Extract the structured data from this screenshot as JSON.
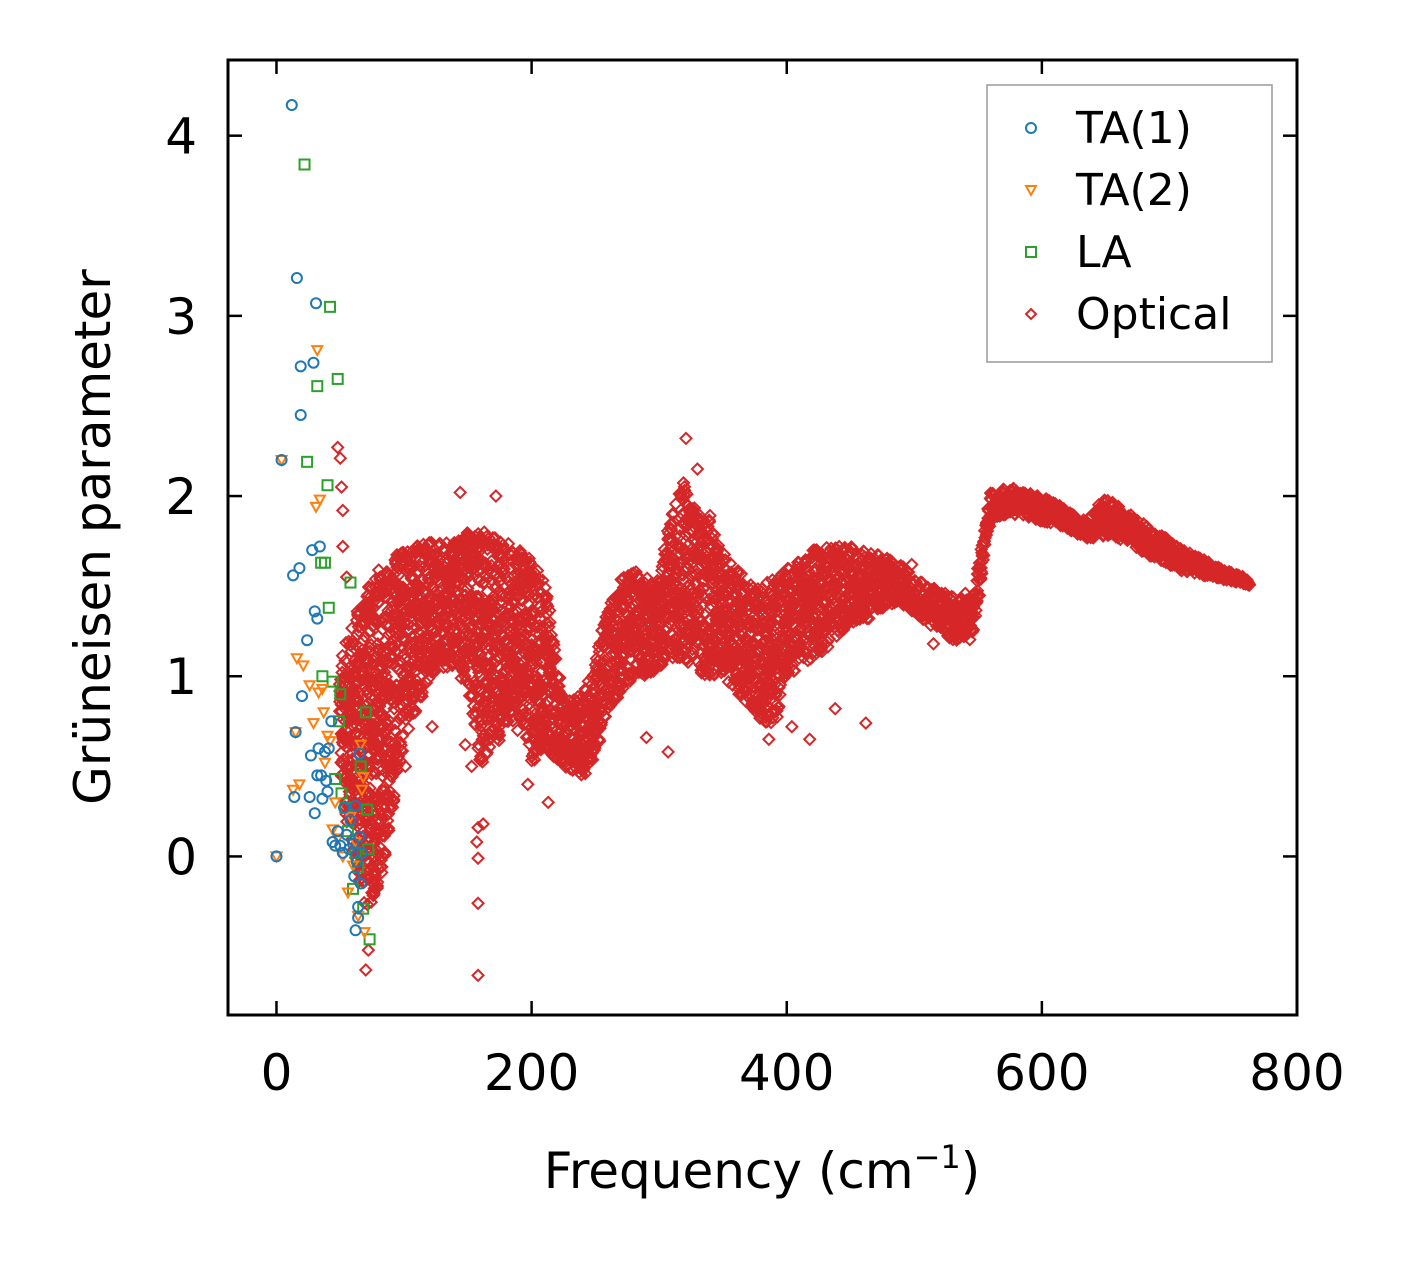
{
  "chart_data": {
    "type": "scatter",
    "title": "",
    "xlabel": "Frequency (cm",
    "xlabel_sup": "−1",
    "xlabel_close": ")",
    "ylabel": "Grüneisen parameter",
    "xlim": [
      -38,
      800
    ],
    "ylim": [
      -0.88,
      4.42
    ],
    "xticks": [
      0,
      200,
      400,
      600,
      800
    ],
    "xtick_labels": [
      "0",
      "200",
      "400",
      "600",
      "800"
    ],
    "yticks": [
      0,
      1,
      2,
      3,
      4
    ],
    "ytick_labels": [
      "0",
      "1",
      "2",
      "3",
      "4"
    ],
    "grid": false,
    "legend_position": "top-right",
    "series": [
      {
        "name": "TA(1)",
        "marker": "circle",
        "color": "#1f77b4",
        "points": [
          [
            0,
            0
          ],
          [
            4,
            2.2
          ],
          [
            12,
            4.17
          ],
          [
            13,
            1.56
          ],
          [
            14,
            0.33
          ],
          [
            15,
            0.69
          ],
          [
            16,
            3.21
          ],
          [
            18,
            1.6
          ],
          [
            19,
            2.72
          ],
          [
            19,
            2.45
          ],
          [
            20,
            0.89
          ],
          [
            24,
            1.2
          ],
          [
            26,
            0.33
          ],
          [
            27,
            0.56
          ],
          [
            28,
            1.7
          ],
          [
            29,
            2.74
          ],
          [
            30,
            0.24
          ],
          [
            30,
            1.36
          ],
          [
            31,
            3.07
          ],
          [
            32,
            1.32
          ],
          [
            32,
            0.45
          ],
          [
            33,
            0.6
          ],
          [
            34,
            1.72
          ],
          [
            35,
            0.45
          ],
          [
            36,
            0.32
          ],
          [
            38,
            0.58
          ],
          [
            39,
            0.42
          ],
          [
            40,
            0.36
          ],
          [
            41,
            0.6
          ],
          [
            43,
            0.75
          ],
          [
            44,
            0.08
          ],
          [
            46,
            0.06
          ],
          [
            48,
            0.14
          ],
          [
            50,
            0.06
          ],
          [
            52,
            0.02
          ],
          [
            53,
            0.27
          ],
          [
            55,
            0.12
          ],
          [
            57,
            0.04
          ],
          [
            58,
            0.2
          ],
          [
            60,
            0.07
          ],
          [
            61,
            -0.11
          ],
          [
            62,
            -0.41
          ],
          [
            62,
            0.28
          ],
          [
            63,
            -0.03
          ],
          [
            64,
            -0.28
          ],
          [
            64,
            -0.34
          ],
          [
            65,
            0.57
          ],
          [
            65,
            0.11
          ],
          [
            66,
            -0.15
          ],
          [
            67,
            0.02
          ]
        ]
      },
      {
        "name": "TA(2)",
        "marker": "triangle-down",
        "color": "#ff7f0e",
        "points": [
          [
            0,
            0
          ],
          [
            4,
            2.2
          ],
          [
            13,
            0.37
          ],
          [
            15,
            0.69
          ],
          [
            16,
            1.1
          ],
          [
            18,
            0.4
          ],
          [
            21,
            1.06
          ],
          [
            26,
            0.95
          ],
          [
            29,
            0.74
          ],
          [
            31,
            1.94
          ],
          [
            32,
            2.81
          ],
          [
            33,
            0.91
          ],
          [
            34,
            1.98
          ],
          [
            36,
            0.93
          ],
          [
            37,
            0.8
          ],
          [
            38,
            0.52
          ],
          [
            40,
            0.67
          ],
          [
            42,
            0.64
          ],
          [
            44,
            0.15
          ],
          [
            46,
            0.3
          ],
          [
            48,
            0.1
          ],
          [
            52,
            0.0
          ],
          [
            56,
            -0.2
          ],
          [
            58,
            0.22
          ],
          [
            60,
            -0.05
          ],
          [
            62,
            0.08
          ],
          [
            64,
            -0.33
          ],
          [
            66,
            0.62
          ],
          [
            67,
            0.37
          ],
          [
            68,
            0.44
          ],
          [
            69,
            -0.42
          ]
        ]
      },
      {
        "name": "LA",
        "marker": "square",
        "color": "#2ca02c",
        "points": [
          [
            22,
            3.84
          ],
          [
            24,
            2.19
          ],
          [
            32,
            2.61
          ],
          [
            35,
            1.63
          ],
          [
            36,
            1.0
          ],
          [
            38,
            1.63
          ],
          [
            40,
            2.06
          ],
          [
            41,
            1.38
          ],
          [
            42,
            3.05
          ],
          [
            44,
            0.97
          ],
          [
            46,
            0.43
          ],
          [
            48,
            2.65
          ],
          [
            49,
            0.75
          ],
          [
            50,
            0.9
          ],
          [
            51,
            0.35
          ],
          [
            54,
            0.27
          ],
          [
            56,
            0.14
          ],
          [
            58,
            1.52
          ],
          [
            60,
            -0.18
          ],
          [
            62,
            0.02
          ],
          [
            64,
            -0.06
          ],
          [
            66,
            0.5
          ],
          [
            68,
            -0.29
          ],
          [
            70,
            0.8
          ],
          [
            71,
            0.26
          ],
          [
            72,
            0.04
          ],
          [
            73,
            -0.46
          ]
        ]
      },
      {
        "name": "Optical",
        "marker": "diamond",
        "color": "#d62728",
        "band": [
          [
            50,
            0.4,
            1.1
          ],
          [
            60,
            0.0,
            1.3
          ],
          [
            70,
            -0.3,
            1.5
          ],
          [
            80,
            -0.2,
            1.6
          ],
          [
            90,
            0.2,
            1.65
          ],
          [
            100,
            0.6,
            1.7
          ],
          [
            110,
            0.8,
            1.75
          ],
          [
            120,
            1.0,
            1.75
          ],
          [
            130,
            1.05,
            1.75
          ],
          [
            140,
            1.05,
            1.75
          ],
          [
            150,
            0.9,
            1.8
          ],
          [
            160,
            0.5,
            1.8
          ],
          [
            170,
            0.6,
            1.8
          ],
          [
            180,
            0.7,
            1.75
          ],
          [
            190,
            0.8,
            1.7
          ],
          [
            200,
            0.5,
            1.65
          ],
          [
            210,
            0.6,
            1.55
          ],
          [
            225,
            0.5,
            0.85
          ],
          [
            240,
            0.45,
            0.9
          ],
          [
            250,
            0.55,
            1.1
          ],
          [
            260,
            0.8,
            1.4
          ],
          [
            270,
            0.9,
            1.55
          ],
          [
            280,
            1.0,
            1.6
          ],
          [
            290,
            1.0,
            1.55
          ],
          [
            300,
            1.05,
            1.55
          ],
          [
            310,
            1.1,
            1.9
          ],
          [
            320,
            1.1,
            2.1
          ],
          [
            330,
            1.0,
            1.9
          ],
          [
            340,
            1.0,
            1.9
          ],
          [
            350,
            1.0,
            1.7
          ],
          [
            360,
            0.9,
            1.6
          ],
          [
            370,
            0.85,
            1.55
          ],
          [
            380,
            0.75,
            1.5
          ],
          [
            390,
            0.7,
            1.55
          ],
          [
            400,
            1.0,
            1.6
          ],
          [
            410,
            1.05,
            1.65
          ],
          [
            420,
            1.1,
            1.7
          ],
          [
            430,
            1.15,
            1.72
          ],
          [
            440,
            1.2,
            1.72
          ],
          [
            450,
            1.3,
            1.72
          ],
          [
            460,
            1.3,
            1.7
          ],
          [
            470,
            1.35,
            1.68
          ],
          [
            480,
            1.4,
            1.65
          ],
          [
            490,
            1.4,
            1.62
          ],
          [
            500,
            1.35,
            1.55
          ],
          [
            510,
            1.3,
            1.5
          ],
          [
            520,
            1.25,
            1.48
          ],
          [
            530,
            1.2,
            1.45
          ],
          [
            545,
            1.2,
            1.42
          ],
          [
            560,
            1.88,
            2.02
          ],
          [
            575,
            1.9,
            2.05
          ],
          [
            590,
            1.88,
            2.02
          ],
          [
            605,
            1.85,
            1.98
          ],
          [
            620,
            1.82,
            1.92
          ],
          [
            635,
            1.76,
            1.86
          ],
          [
            650,
            1.78,
            2.0
          ],
          [
            665,
            1.75,
            1.92
          ],
          [
            680,
            1.68,
            1.85
          ],
          [
            695,
            1.64,
            1.78
          ],
          [
            710,
            1.58,
            1.7
          ],
          [
            725,
            1.56,
            1.66
          ],
          [
            740,
            1.54,
            1.6
          ],
          [
            755,
            1.52,
            1.56
          ],
          [
            762,
            1.5,
            1.53
          ]
        ],
        "outliers": [
          [
            48,
            2.27
          ],
          [
            50,
            2.21
          ],
          [
            51,
            2.05
          ],
          [
            52,
            1.92
          ],
          [
            52,
            1.72
          ],
          [
            55,
            1.55
          ],
          [
            70,
            -0.63
          ],
          [
            72,
            -0.52
          ],
          [
            95,
            0.48
          ],
          [
            101,
            0.5
          ],
          [
            122,
            0.72
          ],
          [
            144,
            2.02
          ],
          [
            148,
            0.62
          ],
          [
            153,
            0.5
          ],
          [
            157,
            0.08
          ],
          [
            158,
            -0.01
          ],
          [
            158,
            -0.26
          ],
          [
            158,
            -0.66
          ],
          [
            158,
            0.16
          ],
          [
            162,
            0.18
          ],
          [
            172,
            2.0
          ],
          [
            189,
            0.7
          ],
          [
            197,
            0.4
          ],
          [
            213,
            0.3
          ],
          [
            242,
            0.46
          ],
          [
            290,
            0.66
          ],
          [
            307,
            0.58
          ],
          [
            321,
            2.32
          ],
          [
            330,
            2.15
          ],
          [
            386,
            0.65
          ],
          [
            389,
            0.77
          ],
          [
            404,
            0.72
          ],
          [
            418,
            0.65
          ],
          [
            438,
            0.82
          ],
          [
            462,
            0.74
          ],
          [
            498,
            1.62
          ],
          [
            515,
            1.18
          ],
          [
            540,
            1.46
          ]
        ]
      }
    ]
  }
}
